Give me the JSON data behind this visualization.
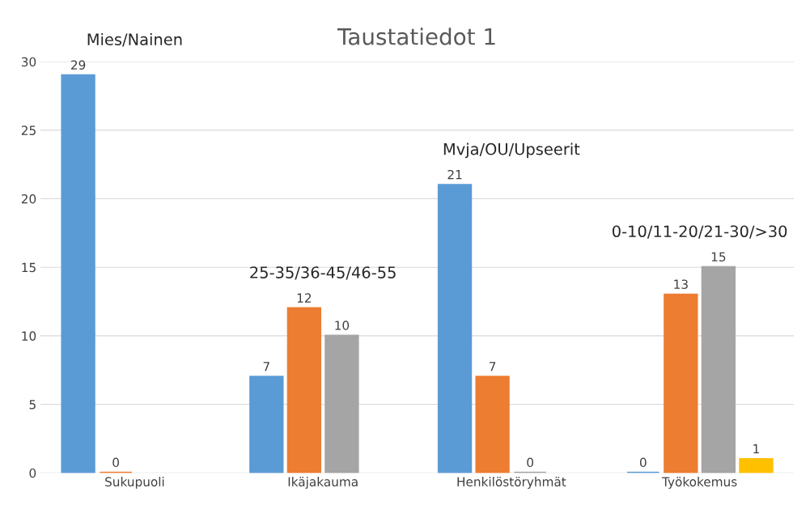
{
  "chart_data": {
    "type": "bar",
    "title": "Taustatiedot 1",
    "categories": [
      "Sukupuoli",
      "Ikäjakauma",
      "Henkilöstöryhmät",
      "Työkokemus"
    ],
    "series": [
      {
        "color": "#5b9bd5",
        "values": [
          29,
          7,
          21,
          0
        ]
      },
      {
        "color": "#ed7d31",
        "values": [
          0,
          12,
          7,
          13
        ]
      },
      {
        "color": "#a5a5a5",
        "values": [
          null,
          10,
          0,
          15
        ]
      },
      {
        "color": "#ffc000",
        "values": [
          null,
          null,
          null,
          1
        ]
      }
    ],
    "ylim": [
      0,
      30
    ],
    "yticks": [
      0,
      5,
      10,
      15,
      20,
      25,
      30
    ],
    "grid": "y",
    "data_labels": true,
    "annotations": [
      "Mies/Nainen",
      "25-35/36-45/46-55",
      "Mvja/OU/Upseerit",
      "0-10/11-20/21-30/>30"
    ]
  }
}
